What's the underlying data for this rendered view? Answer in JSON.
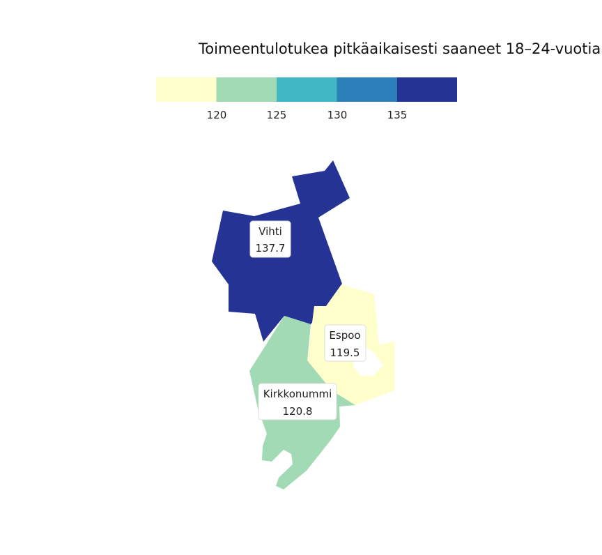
{
  "chart_data": {
    "type": "choropleth",
    "title": "Toimeentulotukea pitkäaikaisesti saaneet 18–24-vuotia",
    "legend": {
      "breaks": [
        120,
        125,
        130,
        135
      ],
      "tick_labels": [
        "120",
        "125",
        "130",
        "135"
      ],
      "colors": [
        "#ffffcc",
        "#a1dab4",
        "#41b6c4",
        "#2c7fb8",
        "#253494"
      ]
    },
    "regions": [
      {
        "name": "Vihti",
        "value": 137.7,
        "value_label": "137.7",
        "color": "#253494"
      },
      {
        "name": "Espoo",
        "value": 119.5,
        "value_label": "119.5",
        "color": "#ffffcc"
      },
      {
        "name": "Kirkkonummi",
        "value": 120.8,
        "value_label": "120.8",
        "color": "#a1dab4"
      }
    ]
  }
}
